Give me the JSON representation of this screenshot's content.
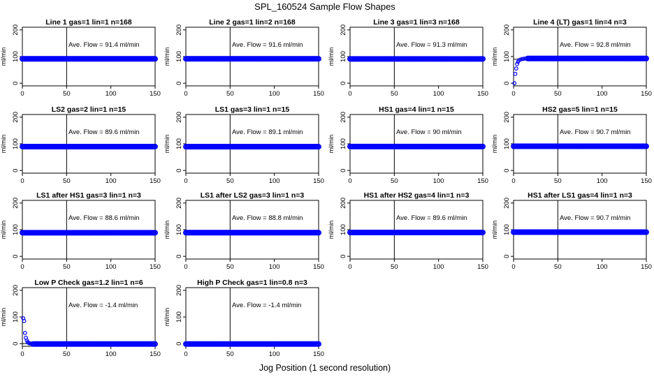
{
  "figure": {
    "title": "SPL_160524  Sample Flow Shapes",
    "xlabel": "Jog Position (1 second resolution)"
  },
  "chart_data": [
    {
      "type": "scatter",
      "title": "Line 1 gas=1 lin=1 n=168",
      "ylabel": "ml/min",
      "annotation": "Ave. Flow = 91.4  ml/min",
      "xlim": [
        0,
        150
      ],
      "ylim": [
        -10,
        210
      ],
      "xticks": [
        0,
        50,
        100,
        150
      ],
      "yticks": [
        0,
        100,
        200
      ],
      "vline": 50,
      "hline": 90,
      "color": "#0000ff",
      "series": [
        {
          "shape": "flat",
          "x_start": 0,
          "x_end": 150,
          "value": 91.4
        }
      ]
    },
    {
      "type": "scatter",
      "title": "Line 2 gas=1 lin=2 n=168",
      "ylabel": "ml/min",
      "annotation": "Ave. Flow = 91.6  ml/min",
      "xlim": [
        0,
        150
      ],
      "ylim": [
        -10,
        210
      ],
      "xticks": [
        0,
        50,
        100,
        150
      ],
      "yticks": [
        0,
        100,
        200
      ],
      "vline": 50,
      "hline": 90,
      "color": "#0000ff",
      "series": [
        {
          "shape": "flat",
          "x_start": 0,
          "x_end": 150,
          "value": 91.6
        }
      ]
    },
    {
      "type": "scatter",
      "title": "Line 3 gas=1 lin=3 n=168",
      "ylabel": "ml/min",
      "annotation": "Ave. Flow = 91.3  ml/min",
      "xlim": [
        0,
        150
      ],
      "ylim": [
        -10,
        210
      ],
      "xticks": [
        0,
        50,
        100,
        150
      ],
      "yticks": [
        0,
        100,
        200
      ],
      "vline": 50,
      "hline": 90,
      "color": "#0000ff",
      "series": [
        {
          "shape": "flat",
          "x_start": 0,
          "x_end": 150,
          "value": 91.3
        }
      ]
    },
    {
      "type": "scatter",
      "title": "Line 4 (LT) gas=1 lin=4 n=3",
      "ylabel": "ml/min",
      "annotation": "Ave. Flow = 92.8  ml/min",
      "xlim": [
        0,
        150
      ],
      "ylim": [
        -10,
        210
      ],
      "xticks": [
        0,
        50,
        100,
        150
      ],
      "yticks": [
        0,
        100,
        200
      ],
      "vline": 50,
      "hline": 90,
      "color": "#0000ff",
      "series": [
        {
          "shape": "rise",
          "x": [
            1,
            2,
            3,
            4,
            5,
            6,
            8,
            10,
            12,
            14,
            16
          ],
          "y": [
            0,
            35,
            55,
            72,
            80,
            86,
            89,
            91,
            92,
            92.5,
            92.8
          ],
          "x_start": 16,
          "x_end": 150,
          "value": 92.8
        }
      ]
    },
    {
      "type": "scatter",
      "title": "LS2 gas=2 lin=1 n=15",
      "ylabel": "ml/min",
      "annotation": "Ave. Flow = 89.6  ml/min",
      "xlim": [
        0,
        150
      ],
      "ylim": [
        -10,
        210
      ],
      "xticks": [
        0,
        50,
        100,
        150
      ],
      "yticks": [
        0,
        100,
        200
      ],
      "vline": 50,
      "hline": 90,
      "color": "#0000ff",
      "series": [
        {
          "shape": "flat",
          "x_start": 0,
          "x_end": 150,
          "value": 89.6
        }
      ]
    },
    {
      "type": "scatter",
      "title": "LS1 gas=3 lin=1 n=15",
      "ylabel": "ml/min",
      "annotation": "Ave. Flow = 89.1  ml/min",
      "xlim": [
        0,
        150
      ],
      "ylim": [
        -10,
        210
      ],
      "xticks": [
        0,
        50,
        100,
        150
      ],
      "yticks": [
        0,
        100,
        200
      ],
      "vline": 50,
      "hline": 90,
      "color": "#0000ff",
      "series": [
        {
          "shape": "flat",
          "x_start": 0,
          "x_end": 150,
          "value": 89.1
        }
      ]
    },
    {
      "type": "scatter",
      "title": "HS1 gas=4 lin=1 n=15",
      "ylabel": "ml/min",
      "annotation": "Ave. Flow = 90  ml/min",
      "xlim": [
        0,
        150
      ],
      "ylim": [
        -10,
        210
      ],
      "xticks": [
        0,
        50,
        100,
        150
      ],
      "yticks": [
        0,
        100,
        200
      ],
      "vline": 50,
      "hline": 90,
      "color": "#0000ff",
      "series": [
        {
          "shape": "flat",
          "x_start": 0,
          "x_end": 150,
          "value": 90
        }
      ]
    },
    {
      "type": "scatter",
      "title": "HS2 gas=5 lin=1 n=15",
      "ylabel": "ml/min",
      "annotation": "Ave. Flow = 90.7  ml/min",
      "xlim": [
        0,
        150
      ],
      "ylim": [
        -10,
        210
      ],
      "xticks": [
        0,
        50,
        100,
        150
      ],
      "yticks": [
        0,
        100,
        200
      ],
      "vline": 50,
      "hline": 90,
      "color": "#0000ff",
      "series": [
        {
          "shape": "flat",
          "x_start": 0,
          "x_end": 150,
          "value": 90.7
        }
      ]
    },
    {
      "type": "scatter",
      "title": "LS1 after HS1 gas=3 lin=1 n=3",
      "ylabel": "ml/min",
      "annotation": "Ave. Flow = 88.6  ml/min",
      "xlim": [
        0,
        150
      ],
      "ylim": [
        -10,
        210
      ],
      "xticks": [
        0,
        50,
        100,
        150
      ],
      "yticks": [
        0,
        100,
        200
      ],
      "vline": 50,
      "hline": 90,
      "color": "#0000ff",
      "series": [
        {
          "shape": "flat",
          "x_start": 0,
          "x_end": 150,
          "value": 88.6
        }
      ]
    },
    {
      "type": "scatter",
      "title": "LS1 after LS2 gas=3 lin=1 n=3",
      "ylabel": "ml/min",
      "annotation": "Ave. Flow = 88.8  ml/min",
      "xlim": [
        0,
        150
      ],
      "ylim": [
        -10,
        210
      ],
      "xticks": [
        0,
        50,
        100,
        150
      ],
      "yticks": [
        0,
        100,
        200
      ],
      "vline": 50,
      "hline": 90,
      "color": "#0000ff",
      "series": [
        {
          "shape": "flat",
          "x_start": 0,
          "x_end": 150,
          "value": 88.8
        }
      ]
    },
    {
      "type": "scatter",
      "title": "HS1 after HS2 gas=4 lin=1 n=3",
      "ylabel": "ml/min",
      "annotation": "Ave. Flow = 89.6  ml/min",
      "xlim": [
        0,
        150
      ],
      "ylim": [
        -10,
        210
      ],
      "xticks": [
        0,
        50,
        100,
        150
      ],
      "yticks": [
        0,
        100,
        200
      ],
      "vline": 50,
      "hline": 90,
      "color": "#0000ff",
      "series": [
        {
          "shape": "flat",
          "x_start": 0,
          "x_end": 150,
          "value": 89.6
        }
      ]
    },
    {
      "type": "scatter",
      "title": "HS1 after LS1 gas=4 lin=1 n=3",
      "ylabel": "ml/min",
      "annotation": "Ave. Flow = 90.7  ml/min",
      "xlim": [
        0,
        150
      ],
      "ylim": [
        -10,
        210
      ],
      "xticks": [
        0,
        50,
        100,
        150
      ],
      "yticks": [
        0,
        100,
        200
      ],
      "vline": 50,
      "hline": 90,
      "color": "#0000ff",
      "series": [
        {
          "shape": "flat",
          "x_start": 0,
          "x_end": 150,
          "value": 90.7
        }
      ]
    },
    {
      "type": "scatter",
      "title": "Low P Check gas=1.2 lin=1 n=6",
      "ylabel": "ml/min",
      "annotation": "Ave. Flow = -1.4  ml/min",
      "xlim": [
        0,
        150
      ],
      "ylim": [
        -10,
        210
      ],
      "xticks": [
        0,
        50,
        100,
        150
      ],
      "yticks": [
        0,
        100,
        200
      ],
      "vline": 50,
      "hline": 0,
      "color": "#0000ff",
      "series": [
        {
          "shape": "decay",
          "x": [
            1,
            2,
            3,
            4,
            5,
            6,
            7,
            8,
            10,
            12
          ],
          "y": [
            95,
            85,
            40,
            22,
            12,
            6,
            3,
            1,
            0,
            -1
          ],
          "x_start": 12,
          "x_end": 150,
          "value": -1.4
        }
      ]
    },
    {
      "type": "scatter",
      "title": "High P Check gas=1 lin=0.8 n=3",
      "ylabel": "ml/min",
      "annotation": "Ave. Flow = -1.4  ml/min",
      "xlim": [
        0,
        150
      ],
      "ylim": [
        -10,
        210
      ],
      "xticks": [
        0,
        50,
        100,
        150
      ],
      "yticks": [
        0,
        100,
        200
      ],
      "vline": 50,
      "hline": 0,
      "color": "#0000ff",
      "series": [
        {
          "shape": "flat",
          "x_start": 0,
          "x_end": 150,
          "value": -1.4
        }
      ]
    }
  ]
}
